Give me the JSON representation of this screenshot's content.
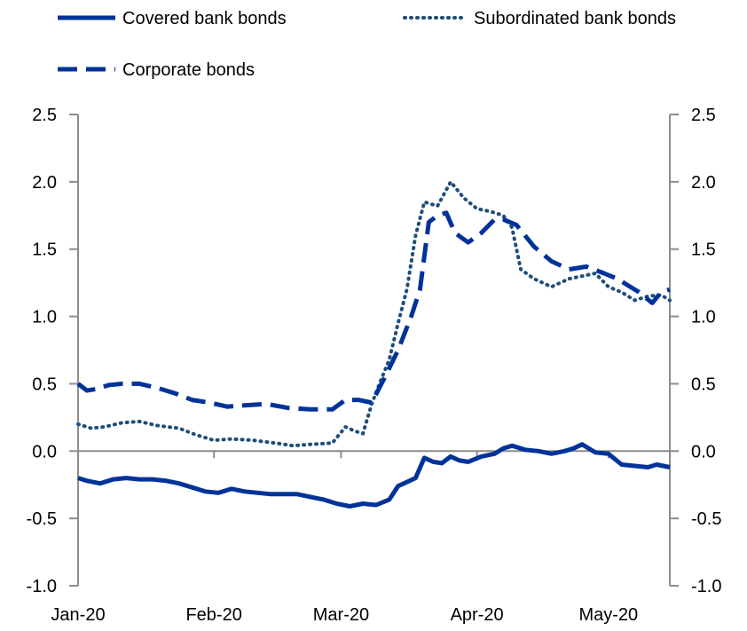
{
  "chart_data": {
    "type": "line",
    "title": "",
    "xlabel": "",
    "ylabel": "",
    "ylim": [
      -1.0,
      2.5
    ],
    "yticks": [
      -1.0,
      -0.5,
      0.0,
      0.5,
      1.0,
      1.5,
      2.0,
      2.5
    ],
    "ytick_labels": [
      "-1.0",
      "-0.5",
      "0.0",
      "0.5",
      "1.0",
      "1.5",
      "2.0",
      "2.5"
    ],
    "xlim": [
      "2020-01-01",
      "2020-05-15"
    ],
    "xticks": [
      "2020-01-01",
      "2020-02-01",
      "2020-03-01",
      "2020-04-01",
      "2020-05-01"
    ],
    "xtick_labels": [
      "Jan-20",
      "Feb-20",
      "Mar-20",
      "Apr-20",
      "May-20"
    ],
    "legend_position": "top",
    "grid": false,
    "series": [
      {
        "name": "Covered bank bonds",
        "color": "#003399",
        "style": "solid",
        "x": [
          "2020-01-01",
          "2020-01-03",
          "2020-01-06",
          "2020-01-09",
          "2020-01-12",
          "2020-01-15",
          "2020-01-18",
          "2020-01-21",
          "2020-01-24",
          "2020-01-27",
          "2020-01-30",
          "2020-02-02",
          "2020-02-05",
          "2020-02-08",
          "2020-02-11",
          "2020-02-14",
          "2020-02-17",
          "2020-02-20",
          "2020-02-23",
          "2020-02-26",
          "2020-02-29",
          "2020-03-03",
          "2020-03-06",
          "2020-03-09",
          "2020-03-12",
          "2020-03-14",
          "2020-03-16",
          "2020-03-18",
          "2020-03-20",
          "2020-03-22",
          "2020-03-24",
          "2020-03-26",
          "2020-03-28",
          "2020-03-30",
          "2020-04-02",
          "2020-04-05",
          "2020-04-07",
          "2020-04-09",
          "2020-04-12",
          "2020-04-15",
          "2020-04-18",
          "2020-04-21",
          "2020-04-23",
          "2020-04-25",
          "2020-04-28",
          "2020-05-01",
          "2020-05-04",
          "2020-05-07",
          "2020-05-10",
          "2020-05-12",
          "2020-05-15"
        ],
        "y": [
          -0.2,
          -0.22,
          -0.24,
          -0.21,
          -0.2,
          -0.21,
          -0.21,
          -0.22,
          -0.24,
          -0.27,
          -0.3,
          -0.31,
          -0.28,
          -0.3,
          -0.31,
          -0.32,
          -0.32,
          -0.32,
          -0.34,
          -0.36,
          -0.39,
          -0.41,
          -0.39,
          -0.4,
          -0.36,
          -0.26,
          -0.23,
          -0.2,
          -0.05,
          -0.08,
          -0.09,
          -0.04,
          -0.07,
          -0.08,
          -0.04,
          -0.02,
          0.02,
          0.04,
          0.01,
          0.0,
          -0.02,
          0.0,
          0.02,
          0.05,
          -0.01,
          -0.02,
          -0.1,
          -0.11,
          -0.12,
          -0.1,
          -0.12
        ]
      },
      {
        "name": "Subordinated bank bonds",
        "color": "#1f4e79",
        "style": "dotted",
        "x": [
          "2020-01-01",
          "2020-01-04",
          "2020-01-07",
          "2020-01-11",
          "2020-01-15",
          "2020-01-19",
          "2020-01-24",
          "2020-01-28",
          "2020-02-01",
          "2020-02-05",
          "2020-02-10",
          "2020-02-15",
          "2020-02-19",
          "2020-02-23",
          "2020-02-28",
          "2020-03-02",
          "2020-03-04",
          "2020-03-06",
          "2020-03-08",
          "2020-03-10",
          "2020-03-12",
          "2020-03-14",
          "2020-03-16",
          "2020-03-18",
          "2020-03-20",
          "2020-03-23",
          "2020-03-26",
          "2020-03-29",
          "2020-04-01",
          "2020-04-04",
          "2020-04-07",
          "2020-04-09",
          "2020-04-11",
          "2020-04-14",
          "2020-04-18",
          "2020-04-22",
          "2020-04-25",
          "2020-04-28",
          "2020-05-01",
          "2020-05-04",
          "2020-05-07",
          "2020-05-10",
          "2020-05-13",
          "2020-05-15"
        ],
        "y": [
          0.2,
          0.17,
          0.18,
          0.21,
          0.22,
          0.19,
          0.17,
          0.12,
          0.08,
          0.09,
          0.08,
          0.06,
          0.04,
          0.05,
          0.06,
          0.18,
          0.15,
          0.13,
          0.35,
          0.52,
          0.68,
          0.95,
          1.2,
          1.6,
          1.85,
          1.82,
          2.0,
          1.88,
          1.8,
          1.78,
          1.75,
          1.66,
          1.35,
          1.28,
          1.22,
          1.28,
          1.3,
          1.32,
          1.22,
          1.18,
          1.12,
          1.15,
          1.16,
          1.12
        ]
      },
      {
        "name": "Corporate bonds",
        "color": "#003399",
        "style": "dashed",
        "x": [
          "2020-01-01",
          "2020-01-03",
          "2020-01-05",
          "2020-01-08",
          "2020-01-11",
          "2020-01-15",
          "2020-01-19",
          "2020-01-23",
          "2020-01-27",
          "2020-01-31",
          "2020-02-04",
          "2020-02-08",
          "2020-02-13",
          "2020-02-18",
          "2020-02-23",
          "2020-02-28",
          "2020-03-02",
          "2020-03-05",
          "2020-03-08",
          "2020-03-11",
          "2020-03-14",
          "2020-03-17",
          "2020-03-19",
          "2020-03-21",
          "2020-03-23",
          "2020-03-25",
          "2020-03-27",
          "2020-03-30",
          "2020-04-02",
          "2020-04-05",
          "2020-04-07",
          "2020-04-10",
          "2020-04-14",
          "2020-04-18",
          "2020-04-22",
          "2020-04-26",
          "2020-04-30",
          "2020-05-03",
          "2020-05-06",
          "2020-05-08",
          "2020-05-11",
          "2020-05-13",
          "2020-05-15"
        ],
        "y": [
          0.5,
          0.45,
          0.46,
          0.49,
          0.5,
          0.5,
          0.47,
          0.43,
          0.38,
          0.36,
          0.33,
          0.34,
          0.35,
          0.32,
          0.31,
          0.31,
          0.38,
          0.38,
          0.36,
          0.55,
          0.75,
          1.0,
          1.2,
          1.7,
          1.75,
          1.77,
          1.62,
          1.55,
          1.62,
          1.72,
          1.72,
          1.68,
          1.52,
          1.41,
          1.35,
          1.37,
          1.32,
          1.28,
          1.22,
          1.18,
          1.1,
          1.18,
          1.2
        ]
      }
    ]
  }
}
